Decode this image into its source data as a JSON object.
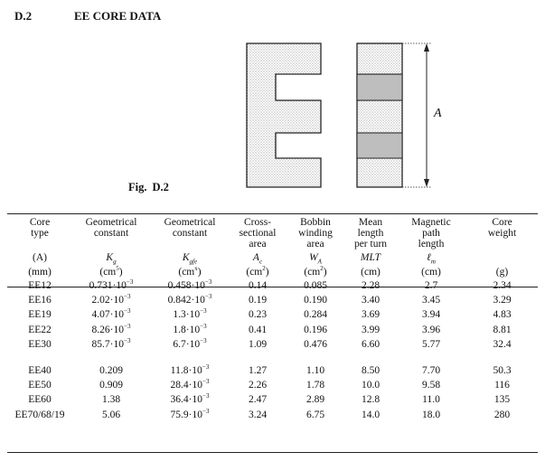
{
  "section": {
    "number": "D.2",
    "title": "EE CORE DATA"
  },
  "figure": {
    "label": "Fig.",
    "number": "D.2",
    "dimension_label": "A"
  },
  "table": {
    "headers": [
      [
        "Core",
        "type",
        ""
      ],
      [
        "Geometrical",
        "constant",
        ""
      ],
      [
        "Geometrical",
        "constant",
        ""
      ],
      [
        "Cross-",
        "sectional",
        "area"
      ],
      [
        "Bobbin",
        "winding",
        "area"
      ],
      [
        "Mean",
        "length",
        "per turn"
      ],
      [
        "Magnetic",
        "path",
        "length"
      ],
      [
        "Core",
        "weight",
        ""
      ]
    ],
    "symbols": [
      "(A)",
      "K",
      "K",
      "A",
      "W",
      "MLT",
      "ℓ",
      ""
    ],
    "symbol_subs": [
      "",
      "g",
      "gfe",
      "c",
      "A",
      "",
      "m",
      ""
    ],
    "units": [
      "(mm)",
      "(cm",
      "(cm",
      "(cm",
      "(cm",
      "(cm)",
      "(cm)",
      "(g)"
    ],
    "unit_sups": [
      "",
      "5",
      "x",
      "2",
      "2",
      "",
      "",
      ""
    ],
    "rows": [
      {
        "type": "EE12",
        "kg": "0.731·10",
        "kg_exp": "−3",
        "kgfe": "0.458·10",
        "kgfe_exp": "−3",
        "ac": "0.14",
        "wa": "0.085",
        "mlt": "2.28",
        "lm": "2.7",
        "weight": "2.34"
      },
      {
        "type": "EE16",
        "kg": "2.02·10",
        "kg_exp": "−3",
        "kgfe": "0.842·10",
        "kgfe_exp": "−3",
        "ac": "0.19",
        "wa": "0.190",
        "mlt": "3.40",
        "lm": "3.45",
        "weight": "3.29"
      },
      {
        "type": "EE19",
        "kg": "4.07·10",
        "kg_exp": "−3",
        "kgfe": "1.3·10",
        "kgfe_exp": "−3",
        "ac": "0.23",
        "wa": "0.284",
        "mlt": "3.69",
        "lm": "3.94",
        "weight": "4.83"
      },
      {
        "type": "EE22",
        "kg": "8.26·10",
        "kg_exp": "−3",
        "kgfe": "1.8·10",
        "kgfe_exp": "−3",
        "ac": "0.41",
        "wa": "0.196",
        "mlt": "3.99",
        "lm": "3.96",
        "weight": "8.81"
      },
      {
        "type": "EE30",
        "kg": "85.7·10",
        "kg_exp": "−3",
        "kgfe": "6.7·10",
        "kgfe_exp": "−3",
        "ac": "1.09",
        "wa": "0.476",
        "mlt": "6.60",
        "lm": "5.77",
        "weight": "32.4"
      },
      {
        "type": "EE40",
        "kg": "0.209",
        "kg_exp": "",
        "kgfe": "11.8·10",
        "kgfe_exp": "−3",
        "ac": "1.27",
        "wa": "1.10",
        "mlt": "8.50",
        "lm": "7.70",
        "weight": "50.3"
      },
      {
        "type": "EE50",
        "kg": "0.909",
        "kg_exp": "",
        "kgfe": "28.4·10",
        "kgfe_exp": "−3",
        "ac": "2.26",
        "wa": "1.78",
        "mlt": "10.0",
        "lm": "9.58",
        "weight": "116"
      },
      {
        "type": "EE60",
        "kg": "1.38",
        "kg_exp": "",
        "kgfe": "36.4·10",
        "kgfe_exp": "−3",
        "ac": "2.47",
        "wa": "2.89",
        "mlt": "12.8",
        "lm": "11.0",
        "weight": "135"
      },
      {
        "type": "EE70/68/19",
        "kg": "5.06",
        "kg_exp": "",
        "kgfe": "75.9·10",
        "kgfe_exp": "−3",
        "ac": "3.24",
        "wa": "6.75",
        "mlt": "14.0",
        "lm": "18.0",
        "weight": "280"
      }
    ]
  }
}
